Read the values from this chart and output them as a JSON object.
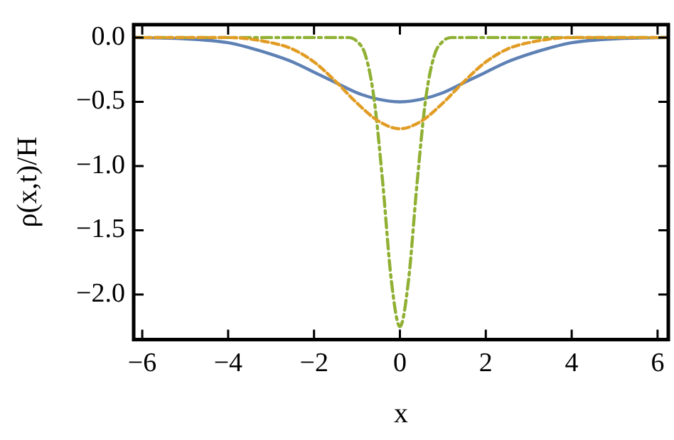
{
  "chart_data": {
    "type": "line",
    "xlabel": "x",
    "ylabel": "ρ(x,t)/H",
    "xlim": [
      -6.2,
      6.25
    ],
    "ylim": [
      -2.35,
      0.1
    ],
    "xticks": [
      -6,
      -4,
      -2,
      0,
      2,
      4,
      6
    ],
    "yticks": [
      {
        "value": 0,
        "label": "0.0"
      },
      {
        "value": -0.5,
        "label": "−0.5"
      },
      {
        "value": -1,
        "label": "−1.0"
      },
      {
        "value": -1.5,
        "label": "−1.5"
      },
      {
        "value": -2,
        "label": "−2.0"
      }
    ],
    "grid": false,
    "legend": false,
    "marker": "none",
    "series": [
      {
        "color": "#5e81b5",
        "line_style": "solid",
        "x": [
          -6.2,
          -5,
          -4,
          -3.5,
          -3,
          -2.5,
          -2,
          -1.5,
          -1,
          -0.5,
          0,
          0.5,
          1,
          1.5,
          2,
          2.5,
          3,
          3.5,
          4,
          5,
          6.2
        ],
        "values": [
          0,
          -0.01,
          -0.04,
          -0.08,
          -0.13,
          -0.19,
          -0.27,
          -0.35,
          -0.43,
          -0.48,
          -0.5,
          -0.48,
          -0.43,
          -0.35,
          -0.27,
          -0.19,
          -0.13,
          -0.08,
          -0.04,
          -0.01,
          0
        ]
      },
      {
        "color": "#e19c24",
        "line_style": "dashed",
        "x": [
          -6.2,
          -4,
          -3,
          -2.5,
          -2,
          -1.5,
          -1,
          -0.5,
          0,
          0.5,
          1,
          1.5,
          2,
          2.5,
          3,
          4,
          6.2
        ],
        "values": [
          0,
          0,
          -0.04,
          -0.09,
          -0.19,
          -0.34,
          -0.51,
          -0.65,
          -0.71,
          -0.65,
          -0.51,
          -0.34,
          -0.19,
          -0.09,
          -0.04,
          0,
          0
        ]
      },
      {
        "color": "#8fb032",
        "line_style": "dash-dot",
        "x": [
          -6.2,
          -1.2,
          -1,
          -0.8,
          -0.6,
          -0.4,
          -0.2,
          0,
          0.2,
          0.4,
          0.6,
          0.8,
          1,
          1.2,
          6.2
        ],
        "values": [
          0,
          0,
          -0.03,
          -0.14,
          -0.48,
          -1.13,
          -1.89,
          -2.25,
          -1.89,
          -1.13,
          -0.48,
          -0.14,
          -0.03,
          0,
          0
        ]
      }
    ]
  }
}
